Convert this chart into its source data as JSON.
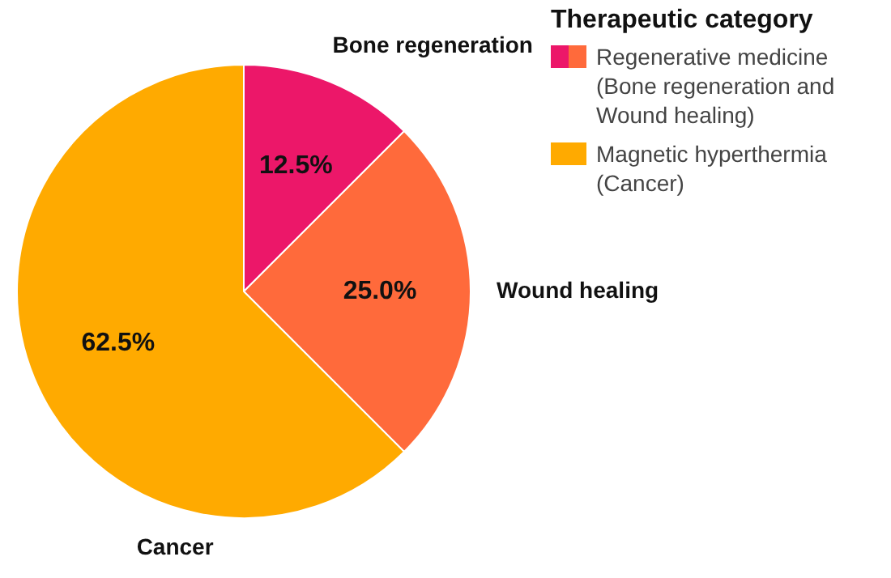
{
  "chart_data": {
    "type": "pie",
    "categories": [
      "Bone regeneration",
      "Wound healing",
      "Cancer"
    ],
    "values": [
      12.5,
      25.0,
      62.5
    ],
    "colors": [
      "#ec1769",
      "#ff6a3b",
      "#ffaa00"
    ],
    "value_labels": [
      "12.5%",
      "25.0%",
      "62.5%"
    ],
    "legend_title": "Therapeutic category",
    "annotations": [
      "Regenerative medicine (Bone regeneration and Wound healing)",
      "Magnetic hyperthermia (Cancer)"
    ]
  }
}
